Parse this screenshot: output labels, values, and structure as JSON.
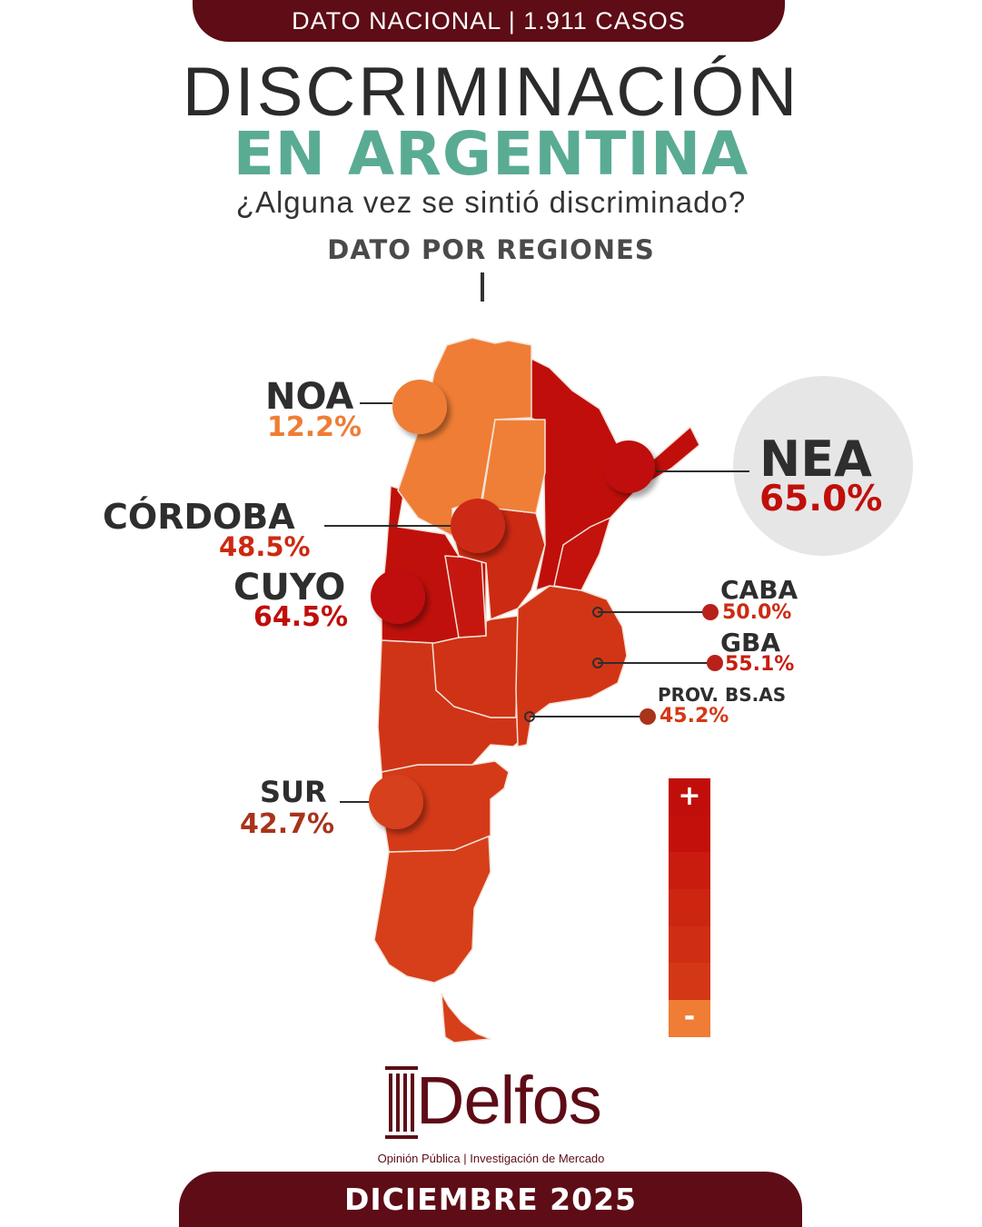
{
  "header": {
    "banner": "DATO NACIONAL | 1.911 CASOS"
  },
  "title": {
    "line1": "DISCRIMINACIÓN",
    "line2": "EN ARGENTINA"
  },
  "question": "¿Alguna vez se sintió discriminado?",
  "subtitle": "DATO POR REGIONES",
  "colors": {
    "brand": "#5e0c16",
    "accent": "#5aab94",
    "orange": "#ef7d35",
    "red_dark": "#c00f0b",
    "red_mid": "#d02e12",
    "red_light": "#d63f1a"
  },
  "regions": {
    "noa": {
      "name": "NOA",
      "value": "12.2%",
      "color": "#ef7d35"
    },
    "nea": {
      "name": "NEA",
      "value": "65.0%",
      "color": "#c00f0b"
    },
    "cordoba": {
      "name": "CÓRDOBA",
      "value": "48.5%",
      "color": "#cc2a12"
    },
    "cuyo": {
      "name": "CUYO",
      "value": "64.5%",
      "color": "#c0100b"
    },
    "caba": {
      "name": "CABA",
      "value": "50.0%",
      "color": "#cc2a12"
    },
    "gba": {
      "name": "GBA",
      "value": "55.1%",
      "color": "#c61e10"
    },
    "prov_bsas": {
      "name": "PROV. BS.AS",
      "value": "45.2%",
      "color": "#d63815"
    },
    "sur": {
      "name": "SUR",
      "value": "42.7%",
      "color": "#a8341a"
    }
  },
  "legend": {
    "plus": "+",
    "minus": "-",
    "scale_colors": [
      "#c00f0b",
      "#c40f0b",
      "#c91c0f",
      "#cc2611",
      "#d02e12",
      "#d43716",
      "#ef7d35"
    ]
  },
  "logo": {
    "name": "Delfos",
    "tagline": "Opinión Pública | Investigación de Mercado"
  },
  "footer": {
    "date": "DICIEMBRE 2025"
  }
}
